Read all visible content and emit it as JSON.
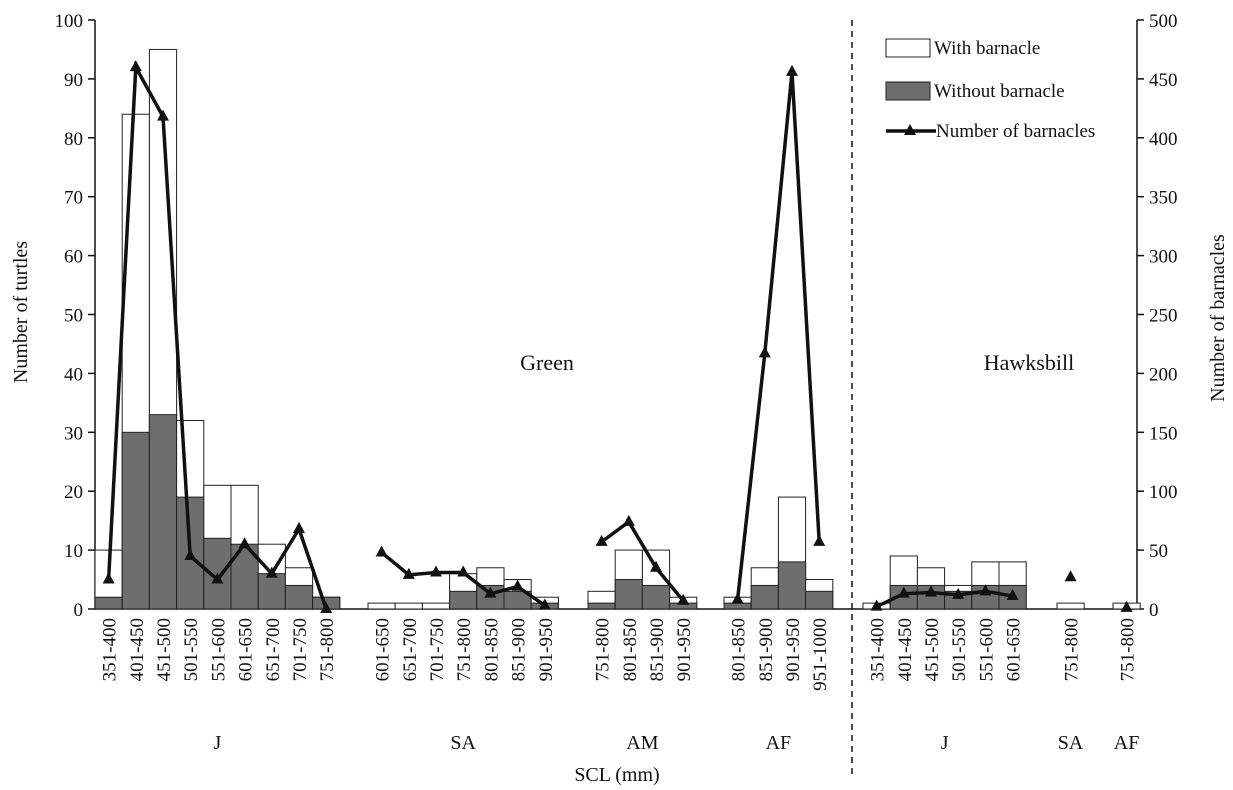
{
  "chart_data": {
    "type": "bar",
    "stacked": true,
    "xlabel": "SCL (mm)",
    "ylabel": "Number of turtles",
    "y2label": "Number of barnacles",
    "ylim": [
      0,
      100
    ],
    "y2lim": [
      0,
      500
    ],
    "yticks": [
      0,
      10,
      20,
      30,
      40,
      50,
      60,
      70,
      80,
      90,
      100
    ],
    "y2ticks": [
      0,
      50,
      100,
      150,
      200,
      250,
      300,
      350,
      400,
      450,
      500
    ],
    "legend": {
      "position": "top-right",
      "with": "With barnacle",
      "without": "Without barnacle",
      "count": "Number of barnacles"
    },
    "colors": {
      "with": "#ffffff",
      "without": "#6e6e6e",
      "line": "#111111"
    },
    "species": [
      {
        "name": "Green",
        "groups": [
          {
            "label": "J",
            "categories": [
              "351-400",
              "401-450",
              "451-500",
              "501-550",
              "551-600",
              "601-650",
              "651-700",
              "701-750",
              "751-800"
            ],
            "total": [
              10,
              84,
              95,
              32,
              21,
              21,
              11,
              7,
              2
            ],
            "without": [
              2,
              30,
              33,
              19,
              12,
              11,
              6,
              4,
              2
            ],
            "barnacles": [
              25,
              460,
              418,
              45,
              25,
              55,
              30,
              68,
              0
            ]
          },
          {
            "label": "SA",
            "categories": [
              "601-650",
              "651-700",
              "701-750",
              "751-800",
              "801-850",
              "851-900",
              "901-950"
            ],
            "total": [
              1,
              1,
              1,
              6,
              7,
              5,
              2
            ],
            "without": [
              0,
              0,
              0,
              3,
              4,
              3,
              1
            ],
            "barnacles": [
              48,
              29,
              31,
              31,
              13,
              19,
              3
            ]
          },
          {
            "label": "AM",
            "categories": [
              "751-800",
              "801-850",
              "851-900",
              "901-950"
            ],
            "total": [
              3,
              10,
              10,
              2
            ],
            "without": [
              1,
              5,
              4,
              1
            ],
            "barnacles": [
              57,
              74,
              35,
              7
            ]
          },
          {
            "label": "AF",
            "categories": [
              "801-850",
              "851-900",
              "901-950",
              "951-1000"
            ],
            "total": [
              2,
              7,
              19,
              5
            ],
            "without": [
              1,
              4,
              8,
              3
            ],
            "barnacles": [
              8,
              217,
              456,
              57
            ]
          }
        ]
      },
      {
        "name": "Hawksbill",
        "groups": [
          {
            "label": "J",
            "categories": [
              "351-400",
              "401-450",
              "451-500",
              "501-550",
              "551-600",
              "601-650"
            ],
            "total": [
              1,
              9,
              7,
              4,
              8,
              8
            ],
            "without": [
              0,
              4,
              4,
              3,
              4,
              4
            ],
            "barnacles": [
              2,
              13,
              14,
              12,
              15,
              11
            ]
          },
          {
            "label": "SA",
            "categories": [
              "751-800"
            ],
            "total": [
              1
            ],
            "without": [
              0
            ],
            "barnacles": [
              27
            ]
          },
          {
            "label": "AF",
            "categories": [
              "751-800"
            ],
            "total": [
              1
            ],
            "without": [
              0
            ],
            "barnacles": [
              1
            ]
          }
        ]
      }
    ]
  }
}
